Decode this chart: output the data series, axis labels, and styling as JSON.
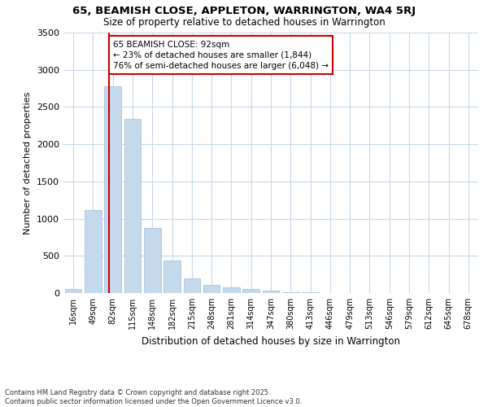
{
  "title_line1": "65, BEAMISH CLOSE, APPLETON, WARRINGTON, WA4 5RJ",
  "title_line2": "Size of property relative to detached houses in Warrington",
  "xlabel": "Distribution of detached houses by size in Warrington",
  "ylabel": "Number of detached properties",
  "categories": [
    "16sqm",
    "49sqm",
    "82sqm",
    "115sqm",
    "148sqm",
    "182sqm",
    "215sqm",
    "248sqm",
    "281sqm",
    "314sqm",
    "347sqm",
    "380sqm",
    "413sqm",
    "446sqm",
    "479sqm",
    "513sqm",
    "546sqm",
    "579sqm",
    "612sqm",
    "645sqm",
    "678sqm"
  ],
  "values": [
    50,
    1120,
    2780,
    2340,
    880,
    440,
    200,
    105,
    75,
    50,
    30,
    15,
    10,
    5,
    3,
    2,
    2,
    1,
    1,
    1,
    1
  ],
  "bar_color": "#c5d9ed",
  "bar_edge_color": "#a8c4de",
  "background_color": "#ffffff",
  "plot_bg_color": "#ffffff",
  "grid_color": "#c8d8e8",
  "vline_color": "#cc0000",
  "vline_x": 1.8,
  "annotation_title": "65 BEAMISH CLOSE: 92sqm",
  "annotation_line1": "← 23% of detached houses are smaller (1,844)",
  "annotation_line2": "76% of semi-detached houses are larger (6,048) →",
  "annotation_box_edgecolor": "#cc0000",
  "footer_line1": "Contains HM Land Registry data © Crown copyright and database right 2025.",
  "footer_line2": "Contains public sector information licensed under the Open Government Licence v3.0.",
  "ylim": [
    0,
    3500
  ],
  "yticks": [
    0,
    500,
    1000,
    1500,
    2000,
    2500,
    3000,
    3500
  ],
  "figsize": [
    6.0,
    5.0
  ],
  "dpi": 100
}
